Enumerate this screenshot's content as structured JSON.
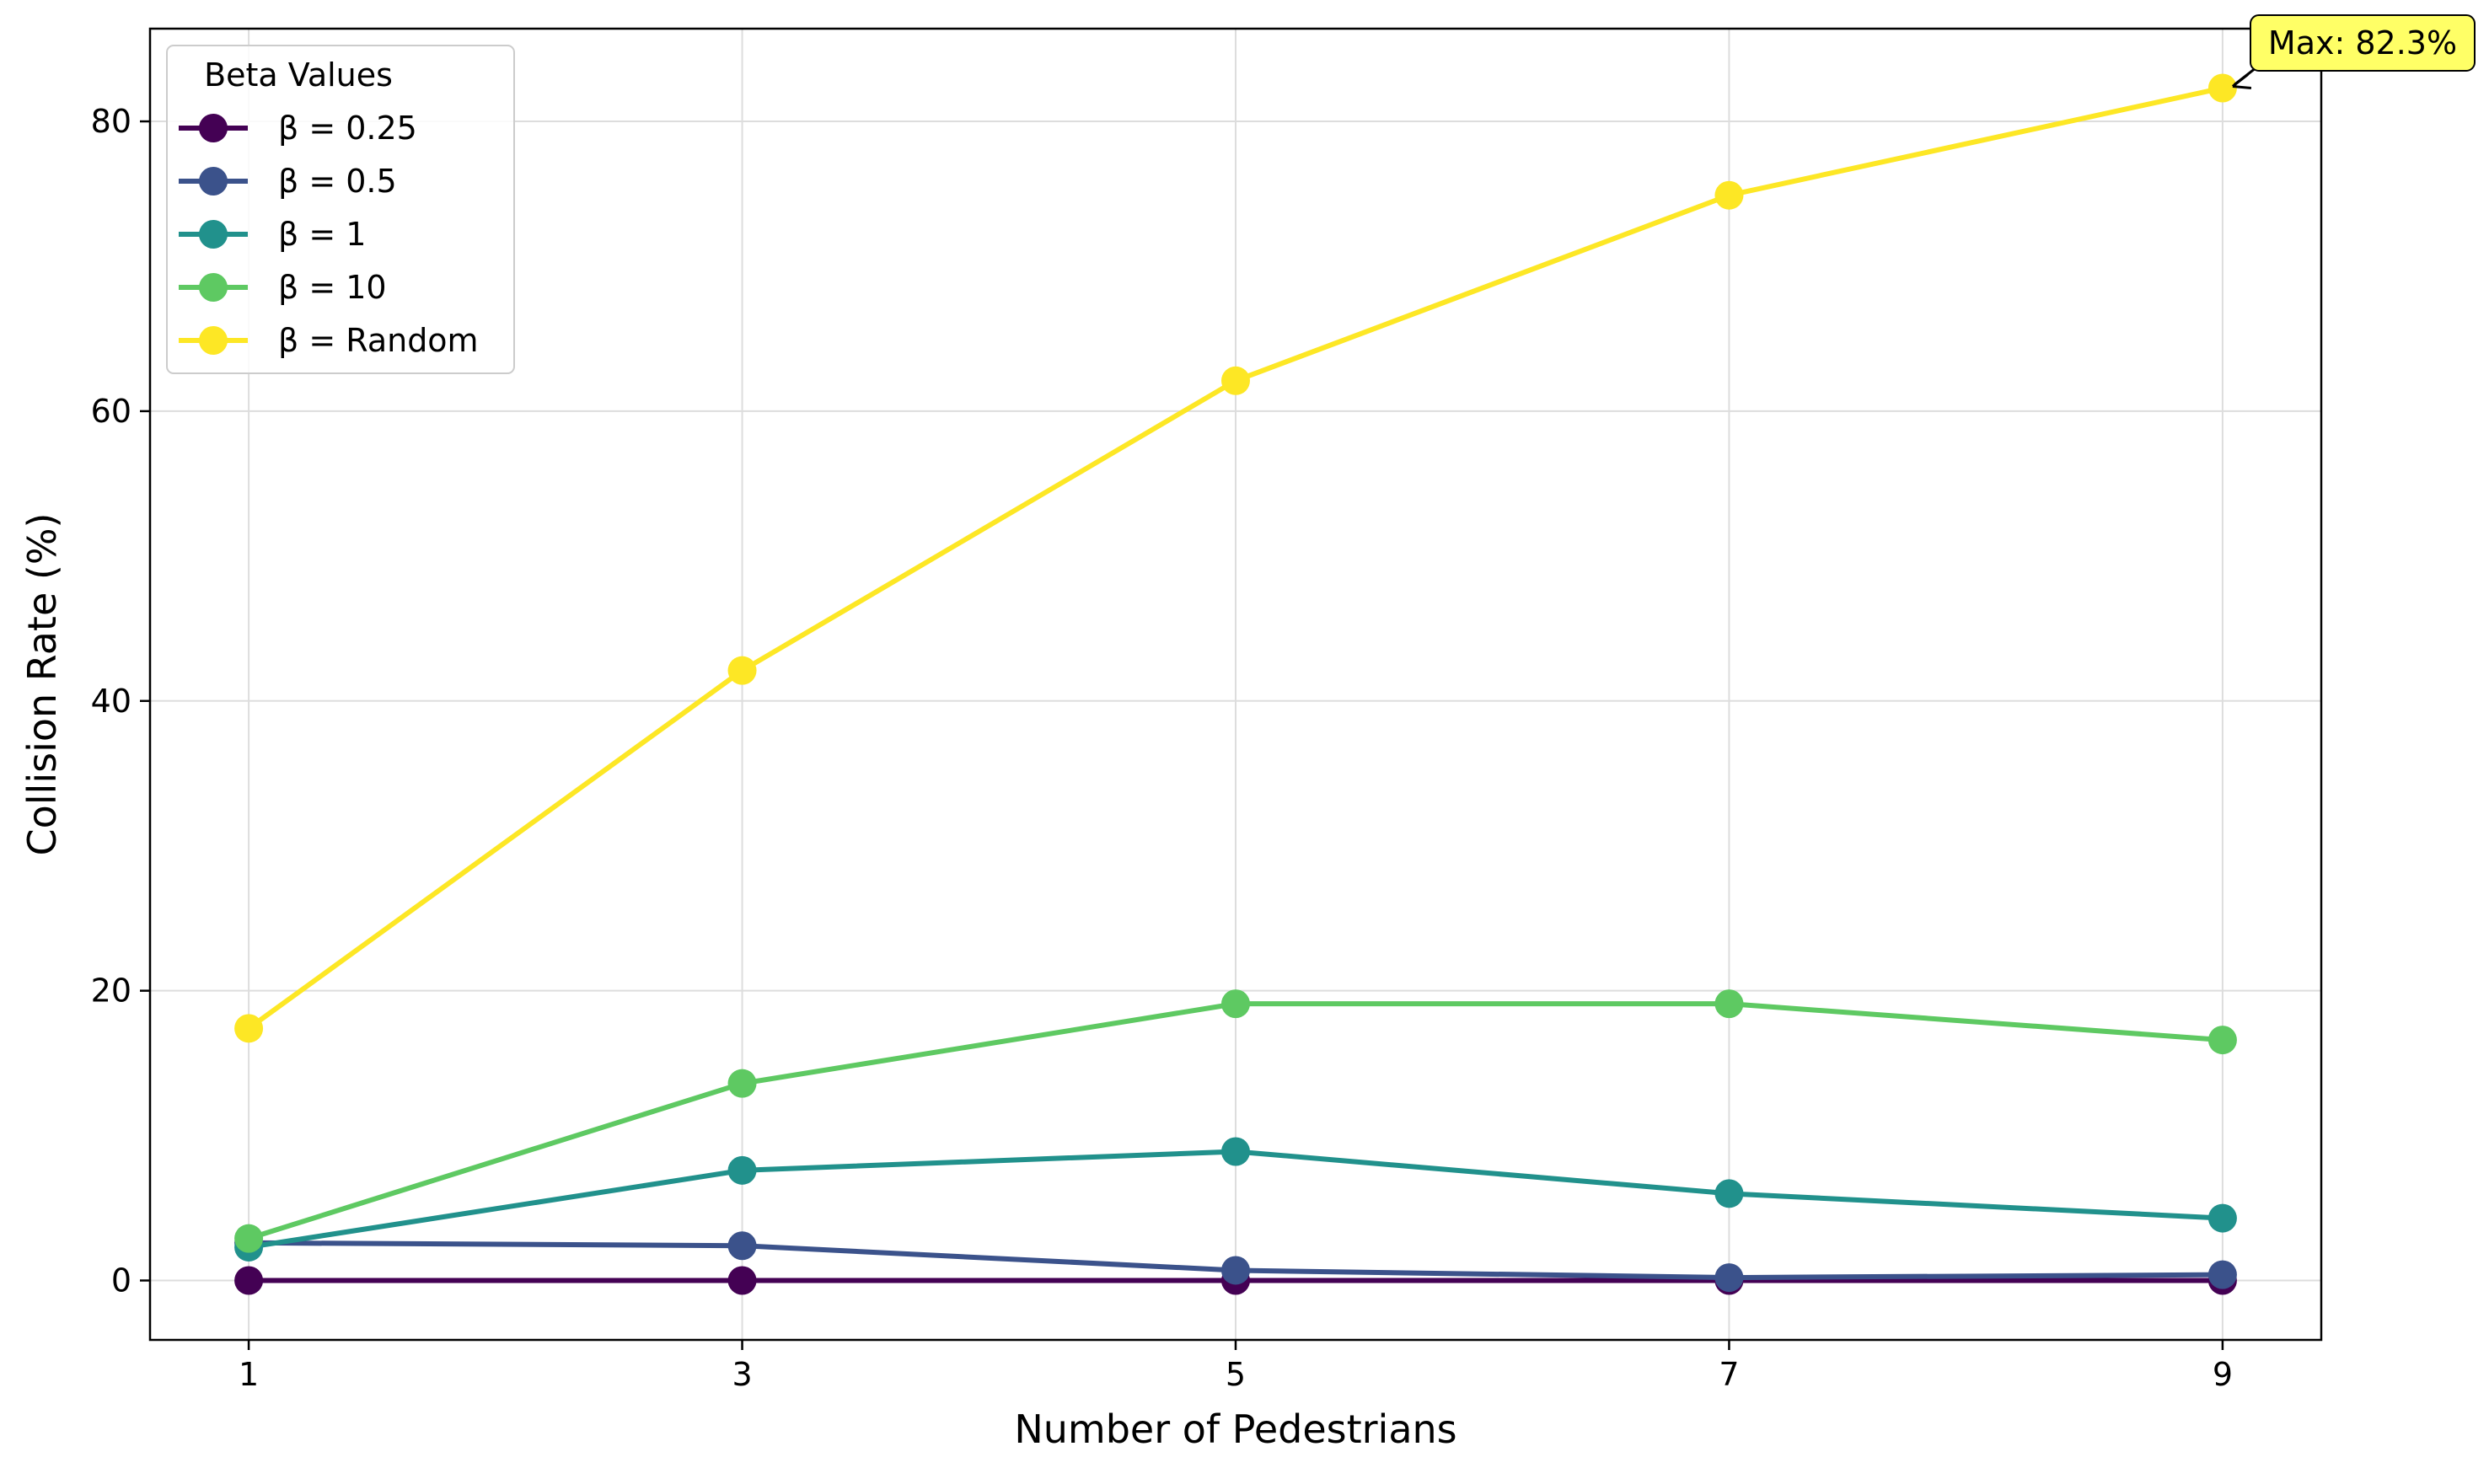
{
  "chart_data": {
    "type": "line",
    "xlabel": "Number of Pedestrians",
    "ylabel": "Collision Rate (%)",
    "x": [
      1,
      3,
      5,
      7,
      9
    ],
    "xticks": [
      1,
      3,
      5,
      7,
      9
    ],
    "yticks": [
      0,
      20,
      40,
      60,
      80
    ],
    "xlim": [
      0.6,
      9.4
    ],
    "ylim": [
      -4.1,
      86.4
    ],
    "grid": true,
    "legend": {
      "title": "Beta Values",
      "placement": "top-left"
    },
    "series": [
      {
        "name": "β = 0.25",
        "color": "#440154",
        "values": [
          0.0,
          0.0,
          0.0,
          0.0,
          0.0
        ]
      },
      {
        "name": "β = 0.5",
        "color": "#3b528b",
        "values": [
          2.6,
          2.4,
          0.7,
          0.2,
          0.4
        ]
      },
      {
        "name": "β = 1",
        "color": "#21918c",
        "values": [
          2.3,
          7.6,
          8.9,
          6.0,
          4.3
        ]
      },
      {
        "name": "β = 10",
        "color": "#5ec962",
        "values": [
          2.9,
          13.6,
          19.1,
          19.1,
          16.6
        ]
      },
      {
        "name": "β = Random",
        "color": "#fde725",
        "values": [
          17.4,
          42.1,
          62.1,
          74.9,
          82.3
        ]
      }
    ],
    "annotations": [
      {
        "text": "Max: 82.3%",
        "x": 9,
        "y": 82.3,
        "color": "#ffff66"
      }
    ]
  }
}
